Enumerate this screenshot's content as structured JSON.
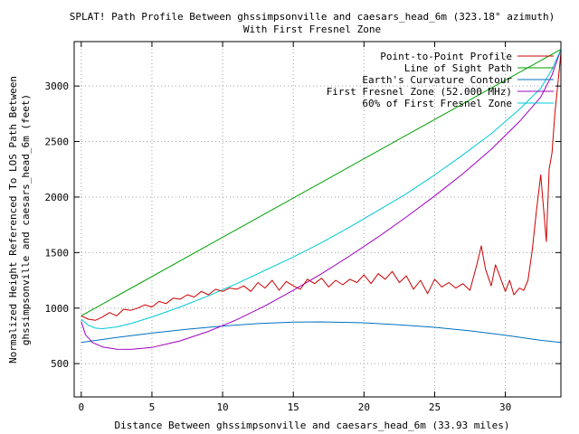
{
  "chart_data": {
    "type": "line",
    "title_line1": "SPLAT! Path Profile Between ghssimpsonville and caesars_head_6m (323.18° azimuth)",
    "title_line2": "With First Fresnel Zone",
    "xlabel": "Distance Between ghssimpsonville and caesars_head_6m (33.93 miles)",
    "ylabel_line1": "Normalized Height Referenced To LOS Path Between",
    "ylabel_line2": "ghssimpsonville and caesars_head_6m (feet)",
    "xlim": [
      -0.5,
      33.93
    ],
    "ylim": [
      200,
      3400
    ],
    "x_ticks": [
      0,
      5,
      10,
      15,
      20,
      25,
      30
    ],
    "x_tick_labels": [
      "0",
      "5",
      "10",
      "15",
      "20",
      "25",
      "30"
    ],
    "y_ticks": [
      500,
      1000,
      1500,
      2000,
      2500,
      3000
    ],
    "y_tick_labels": [
      "500",
      "1000",
      "1500",
      "2000",
      "2500",
      "3000"
    ],
    "grid": true,
    "legend_position": "top-right",
    "series": [
      {
        "name": "Point-to-Point Profile",
        "color": "#cc0000",
        "x": [
          0,
          0.5,
          1.0,
          1.5,
          2.0,
          2.5,
          3.0,
          3.5,
          4.0,
          4.5,
          5.0,
          5.5,
          6.0,
          6.5,
          7.0,
          7.5,
          8.0,
          8.5,
          9.0,
          9.5,
          10.0,
          10.5,
          11.0,
          11.5,
          12.0,
          12.5,
          13.0,
          13.5,
          14.0,
          14.5,
          15.0,
          15.5,
          16.0,
          16.5,
          17.0,
          17.5,
          18.0,
          18.5,
          19.0,
          19.5,
          20.0,
          20.5,
          21.0,
          21.5,
          22.0,
          22.5,
          23.0,
          23.5,
          24.0,
          24.5,
          25.0,
          25.5,
          26.0,
          26.5,
          27.0,
          27.5,
          28.0,
          28.3,
          28.6,
          29.0,
          29.3,
          29.6,
          30.0,
          30.3,
          30.6,
          31.0,
          31.3,
          31.6,
          31.9,
          32.2,
          32.5,
          32.7,
          32.9,
          33.1,
          33.3,
          33.5,
          33.7,
          33.93
        ],
        "y": [
          930,
          900,
          890,
          920,
          960,
          930,
          990,
          980,
          1000,
          1030,
          1010,
          1060,
          1040,
          1090,
          1080,
          1120,
          1100,
          1150,
          1120,
          1170,
          1150,
          1180,
          1170,
          1200,
          1150,
          1230,
          1180,
          1250,
          1160,
          1240,
          1200,
          1170,
          1260,
          1220,
          1270,
          1190,
          1250,
          1210,
          1260,
          1230,
          1300,
          1220,
          1310,
          1260,
          1330,
          1230,
          1290,
          1170,
          1250,
          1130,
          1260,
          1190,
          1230,
          1180,
          1220,
          1160,
          1400,
          1560,
          1350,
          1200,
          1390,
          1290,
          1150,
          1250,
          1120,
          1180,
          1160,
          1250,
          1520,
          1880,
          2200,
          1900,
          1600,
          2250,
          2400,
          2750,
          3000,
          3300
        ]
      },
      {
        "name": "Line of Sight Path",
        "color": "#00a000",
        "x": [
          0,
          33.93
        ],
        "y": [
          930,
          3330
        ]
      },
      {
        "name": "Earth's Curvature Contour",
        "color": "#0070c0",
        "x": [
          0,
          2.5,
          5,
          7.5,
          10,
          12.5,
          15,
          17,
          20,
          22.5,
          25,
          27.5,
          30,
          32.5,
          33.93
        ],
        "y": [
          690,
          735,
          775,
          810,
          838,
          860,
          873,
          876,
          868,
          850,
          827,
          795,
          755,
          710,
          690
        ]
      },
      {
        "name": "First Fresnel Zone (52.000 MHz)",
        "color": "#a000c0",
        "x": [
          0,
          0.3,
          0.8,
          1.5,
          2.5,
          3.5,
          5,
          7,
          9,
          11,
          13,
          15,
          17,
          19,
          21,
          23,
          25,
          27,
          29,
          31,
          32.5,
          33.3,
          33.93
        ],
        "y": [
          880,
          760,
          690,
          650,
          630,
          628,
          645,
          705,
          790,
          895,
          1020,
          1160,
          1310,
          1470,
          1640,
          1820,
          2010,
          2210,
          2430,
          2680,
          2900,
          3100,
          3330
        ]
      },
      {
        "name": "60% of First Fresnel Zone",
        "color": "#00c8d8",
        "x": [
          0,
          0.5,
          1.0,
          1.5,
          2.5,
          3.5,
          5,
          7,
          9,
          11,
          13,
          15,
          17,
          19,
          21,
          23,
          25,
          27,
          29,
          31,
          32.5,
          33.3,
          33.93
        ],
        "y": [
          900,
          845,
          820,
          815,
          830,
          860,
          920,
          1010,
          1110,
          1220,
          1340,
          1460,
          1590,
          1730,
          1880,
          2030,
          2200,
          2380,
          2570,
          2790,
          2980,
          3150,
          3330
        ]
      }
    ]
  }
}
